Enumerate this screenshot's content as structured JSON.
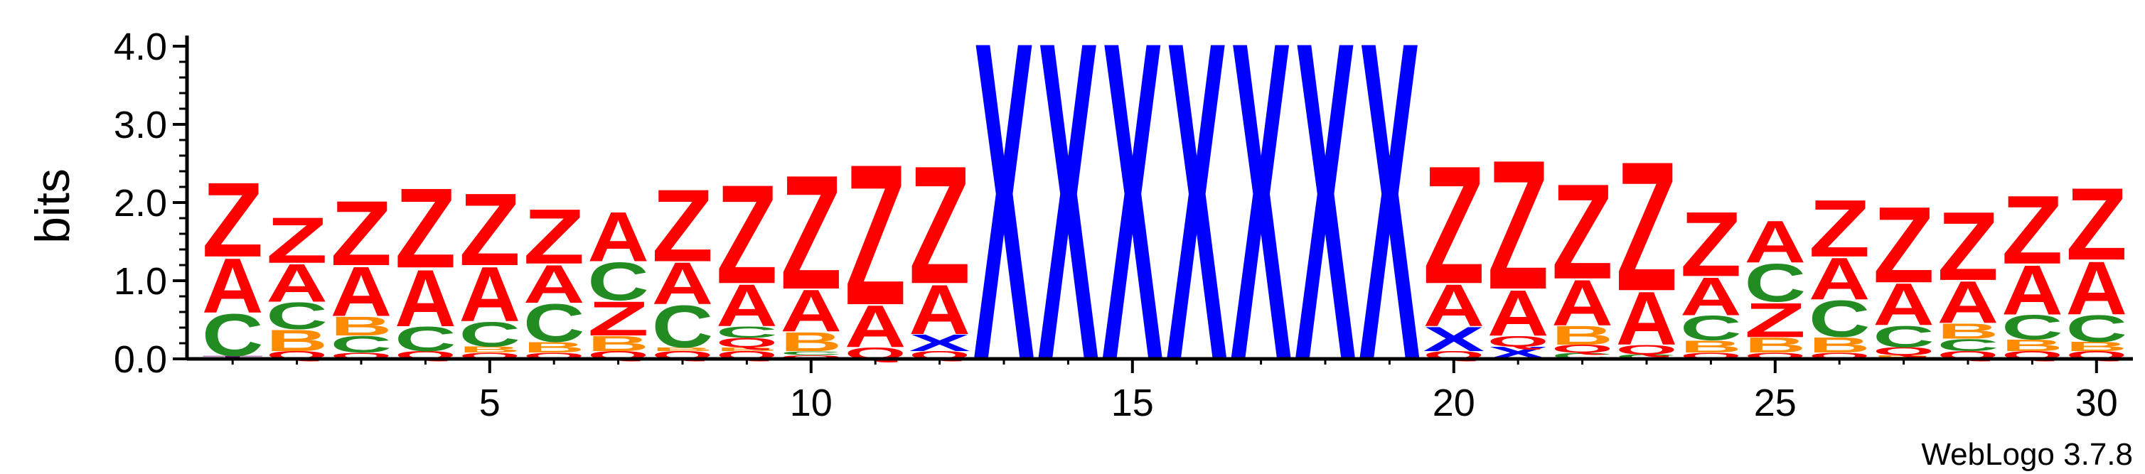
{
  "chart_data": {
    "type": "sequence-logo",
    "ylabel": "bits",
    "ylim": [
      0,
      4.0
    ],
    "y_ticks": [
      "0.0",
      "1.0",
      "2.0",
      "3.0",
      "4.0"
    ],
    "x_ticks": [
      5,
      10,
      15,
      20,
      25,
      30
    ],
    "credit": "WebLogo 3.7.8",
    "colors": {
      "A": "#ff0000",
      "Z": "#ff0000",
      "Q": "#ff0000",
      "C": "#228b22",
      "B": "#ff8c00",
      "X": "#0000ff",
      "T": "#800080"
    },
    "positions": [
      {
        "pos": 1,
        "stack": [
          [
            "T",
            0.04
          ],
          [
            "C",
            0.55
          ],
          [
            "A",
            0.72
          ],
          [
            "Z",
            0.98
          ]
        ]
      },
      {
        "pos": 2,
        "stack": [
          [
            "Q",
            0.1
          ],
          [
            "B",
            0.28
          ],
          [
            "C",
            0.35
          ],
          [
            "A",
            0.5
          ],
          [
            "Z",
            0.6
          ]
        ]
      },
      {
        "pos": 3,
        "stack": [
          [
            "Q",
            0.08
          ],
          [
            "C",
            0.22
          ],
          [
            "B",
            0.25
          ],
          [
            "A",
            0.65
          ],
          [
            "Z",
            0.85
          ]
        ]
      },
      {
        "pos": 4,
        "stack": [
          [
            "Q",
            0.1
          ],
          [
            "C",
            0.32
          ],
          [
            "A",
            0.75
          ],
          [
            "Z",
            1.05
          ]
        ]
      },
      {
        "pos": 5,
        "stack": [
          [
            "Q",
            0.08
          ],
          [
            "B",
            0.08
          ],
          [
            "C",
            0.32
          ],
          [
            "A",
            0.72
          ],
          [
            "Z",
            0.95
          ]
        ]
      },
      {
        "pos": 6,
        "stack": [
          [
            "Q",
            0.08
          ],
          [
            "B",
            0.14
          ],
          [
            "C",
            0.5
          ],
          [
            "A",
            0.5
          ],
          [
            "Z",
            0.72
          ]
        ]
      },
      {
        "pos": 7,
        "stack": [
          [
            "Q",
            0.1
          ],
          [
            "B",
            0.2
          ],
          [
            "Z",
            0.45
          ],
          [
            "C",
            0.5
          ],
          [
            "A",
            0.65
          ]
        ]
      },
      {
        "pos": 8,
        "stack": [
          [
            "Q",
            0.1
          ],
          [
            "B",
            0.05
          ],
          [
            "C",
            0.55
          ],
          [
            "A",
            0.55
          ],
          [
            "Z",
            0.95
          ]
        ]
      },
      {
        "pos": 9,
        "stack": [
          [
            "Q",
            0.1
          ],
          [
            "B",
            0.05
          ],
          [
            "Q",
            0.12
          ],
          [
            "C",
            0.15
          ],
          [
            "A",
            0.55
          ],
          [
            "Z",
            1.3
          ]
        ]
      },
      {
        "pos": 10,
        "stack": [
          [
            "Q",
            0.05
          ],
          [
            "C",
            0.05
          ],
          [
            "B",
            0.25
          ],
          [
            "A",
            0.55
          ],
          [
            "Z",
            1.5
          ]
        ]
      },
      {
        "pos": 11,
        "stack": [
          [
            "Q",
            0.15
          ],
          [
            "A",
            0.55
          ],
          [
            "Z",
            1.85
          ]
        ]
      },
      {
        "pos": 12,
        "stack": [
          [
            "Q",
            0.1
          ],
          [
            "X",
            0.22
          ],
          [
            "A",
            0.65
          ],
          [
            "Z",
            1.55
          ]
        ]
      },
      {
        "pos": 13,
        "stack": [
          [
            "X",
            4.2
          ]
        ]
      },
      {
        "pos": 14,
        "stack": [
          [
            "X",
            4.2
          ]
        ]
      },
      {
        "pos": 15,
        "stack": [
          [
            "X",
            4.2
          ]
        ]
      },
      {
        "pos": 16,
        "stack": [
          [
            "X",
            4.2
          ]
        ]
      },
      {
        "pos": 17,
        "stack": [
          [
            "X",
            4.2
          ]
        ]
      },
      {
        "pos": 18,
        "stack": [
          [
            "X",
            4.2
          ]
        ]
      },
      {
        "pos": 19,
        "stack": [
          [
            "X",
            4.2
          ]
        ]
      },
      {
        "pos": 20,
        "stack": [
          [
            "Q",
            0.1
          ],
          [
            "X",
            0.32
          ],
          [
            "A",
            0.55
          ],
          [
            "Z",
            1.55
          ]
        ]
      },
      {
        "pos": 21,
        "stack": [
          [
            "X",
            0.16
          ],
          [
            "Q",
            0.14
          ],
          [
            "A",
            0.6
          ],
          [
            "Z",
            1.7
          ]
        ]
      },
      {
        "pos": 22,
        "stack": [
          [
            "C",
            0.08
          ],
          [
            "Q",
            0.1
          ],
          [
            "B",
            0.25
          ],
          [
            "A",
            0.6
          ],
          [
            "Z",
            1.25
          ]
        ]
      },
      {
        "pos": 23,
        "stack": [
          [
            "C",
            0.06
          ],
          [
            "Q",
            0.12
          ],
          [
            "A",
            0.7
          ],
          [
            "Z",
            1.7
          ]
        ]
      },
      {
        "pos": 24,
        "stack": [
          [
            "Q",
            0.08
          ],
          [
            "B",
            0.16
          ],
          [
            "C",
            0.32
          ],
          [
            "A",
            0.5
          ],
          [
            "Z",
            0.85
          ]
        ]
      },
      {
        "pos": 25,
        "stack": [
          [
            "Q",
            0.08
          ],
          [
            "B",
            0.2
          ],
          [
            "Z",
            0.45
          ],
          [
            "C",
            0.5
          ],
          [
            "A",
            0.55
          ]
        ]
      },
      {
        "pos": 26,
        "stack": [
          [
            "Q",
            0.08
          ],
          [
            "B",
            0.2
          ],
          [
            "C",
            0.48
          ],
          [
            "A",
            0.55
          ],
          [
            "Z",
            0.75
          ]
        ]
      },
      {
        "pos": 27,
        "stack": [
          [
            "B",
            0.05
          ],
          [
            "Q",
            0.1
          ],
          [
            "C",
            0.28
          ],
          [
            "A",
            0.55
          ],
          [
            "Z",
            1.0
          ]
        ]
      },
      {
        "pos": 28,
        "stack": [
          [
            "Q",
            0.1
          ],
          [
            "C",
            0.16
          ],
          [
            "B",
            0.2
          ],
          [
            "A",
            0.55
          ],
          [
            "Z",
            0.9
          ]
        ]
      },
      {
        "pos": 29,
        "stack": [
          [
            "Q",
            0.1
          ],
          [
            "B",
            0.15
          ],
          [
            "C",
            0.32
          ],
          [
            "A",
            0.65
          ],
          [
            "Z",
            0.9
          ]
        ]
      },
      {
        "pos": 30,
        "stack": [
          [
            "Q",
            0.1
          ],
          [
            "B",
            0.12
          ],
          [
            "C",
            0.35
          ],
          [
            "A",
            0.7
          ],
          [
            "Z",
            0.95
          ]
        ]
      }
    ]
  }
}
